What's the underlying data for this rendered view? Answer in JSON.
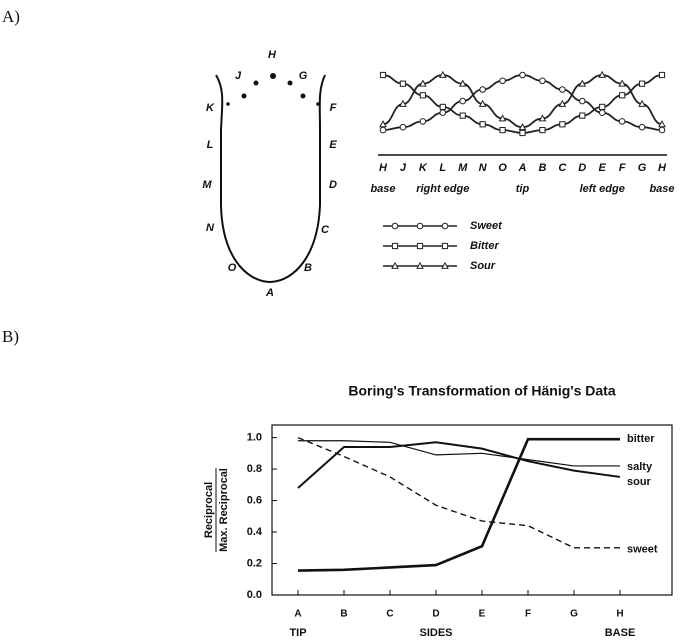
{
  "panel_labels": [
    "A)",
    "B)"
  ],
  "tongue": {
    "points": [
      "H",
      "J",
      "G",
      "K",
      "F",
      "L",
      "E",
      "M",
      "D",
      "N",
      "C",
      "O",
      "B",
      "A"
    ]
  },
  "chart_data": [
    {
      "type": "line",
      "categories": [
        "H",
        "J",
        "K",
        "L",
        "M",
        "N",
        "O",
        "A",
        "B",
        "C",
        "D",
        "E",
        "F",
        "G",
        "H"
      ],
      "region_labels": [
        "base",
        null,
        null,
        "right edge",
        null,
        null,
        null,
        "tip",
        null,
        null,
        null,
        "left edge",
        null,
        null,
        "base"
      ],
      "series": [
        {
          "name": "Sweet",
          "marker": "circle",
          "color": "#222222",
          "values": [
            0.05,
            0.1,
            0.2,
            0.35,
            0.55,
            0.75,
            0.9,
            1,
            0.9,
            0.75,
            0.55,
            0.35,
            0.2,
            0.1,
            0.05
          ]
        },
        {
          "name": "Bitter",
          "marker": "square",
          "color": "#222222",
          "values": [
            1,
            0.85,
            0.65,
            0.45,
            0.3,
            0.15,
            0.05,
            0,
            0.05,
            0.15,
            0.3,
            0.45,
            0.65,
            0.85,
            1
          ]
        },
        {
          "name": "Sour",
          "marker": "triangle",
          "color": "#222222",
          "values": [
            0.15,
            0.5,
            0.85,
            1,
            0.85,
            0.5,
            0.25,
            0.1,
            0.25,
            0.5,
            0.85,
            1,
            0.85,
            0.5,
            0.15
          ]
        }
      ]
    },
    {
      "type": "line",
      "title": "Boring's Transformation of Hänig's Data",
      "y_label": {
        "numerator": "Reciprocal",
        "denominator": "Max. Reciprocal"
      },
      "categories": [
        "A",
        "B",
        "C",
        "D",
        "E",
        "F",
        "G",
        "H"
      ],
      "group_labels": [
        "TIP",
        null,
        null,
        "SIDES",
        null,
        null,
        null,
        "BASE"
      ],
      "ylim": [
        0,
        1.08
      ],
      "yticks": [
        {
          "value": 0,
          "label": "0.0"
        },
        0.2,
        0.4,
        0.6,
        0.8,
        {
          "value": 1,
          "label": "1.0"
        }
      ],
      "series": [
        {
          "name": "bitter",
          "color": "#111111",
          "line_style": "solid",
          "line_width": 2.6,
          "values": [
            0.155,
            0.16,
            0.175,
            0.19,
            0.31,
            0.99,
            0.99,
            0.99
          ]
        },
        {
          "name": "salty",
          "color": "#111111",
          "line_style": "solid",
          "line_width": 1.2,
          "values": [
            0.98,
            0.98,
            0.97,
            0.89,
            0.9,
            0.86,
            0.82,
            0.82
          ]
        },
        {
          "name": "sour",
          "color": "#111111",
          "line_style": "solid",
          "line_width": 2,
          "values": [
            0.68,
            0.94,
            0.94,
            0.97,
            0.93,
            0.85,
            0.79,
            0.75
          ]
        },
        {
          "name": "sweet",
          "color": "#111111",
          "line_style": "dashed",
          "line_width": 1.4,
          "values": [
            1,
            0.88,
            0.75,
            0.57,
            0.47,
            0.44,
            0.3,
            0.3
          ]
        }
      ]
    }
  ]
}
